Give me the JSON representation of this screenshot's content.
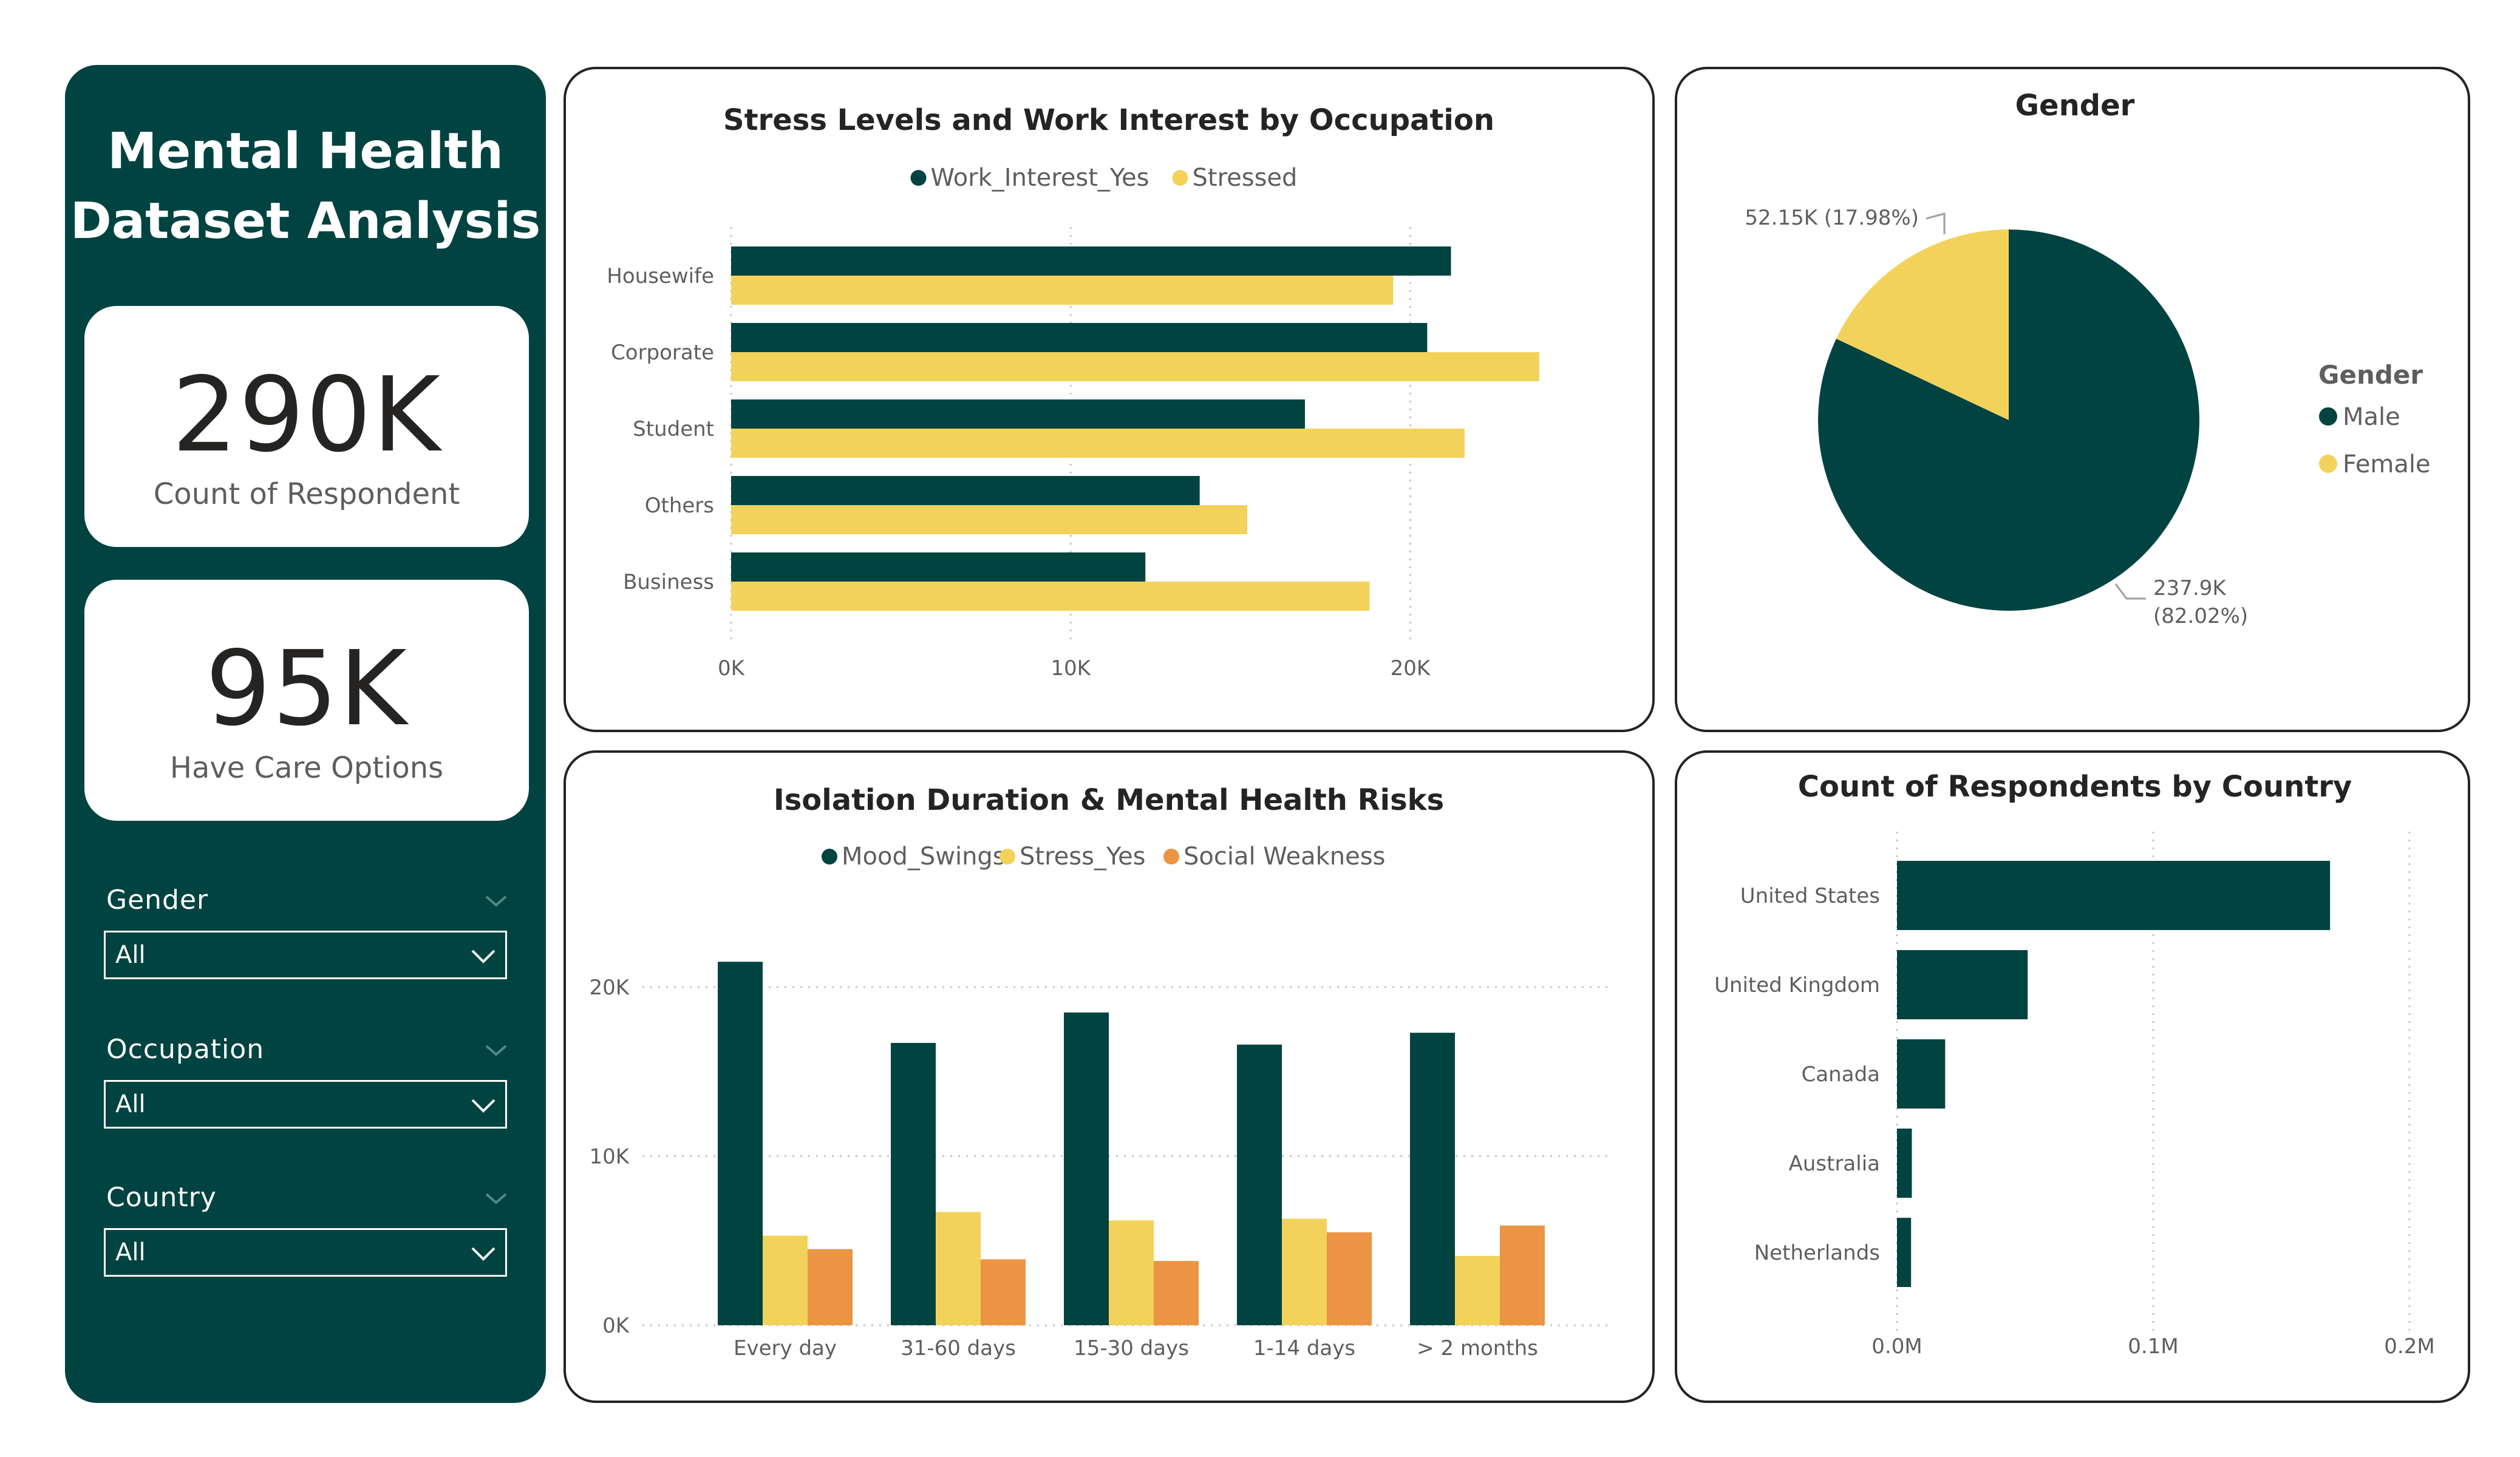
{
  "sidebar": {
    "title_line1": "Mental Health",
    "title_line2": "Dataset Analysis",
    "kpis": [
      {
        "value": "290K",
        "label": "Count of Respondent"
      },
      {
        "value": "95K",
        "label": "Have Care Options"
      }
    ],
    "slicers": [
      {
        "label": "Gender",
        "value": "All"
      },
      {
        "label": "Occupation",
        "value": "All"
      },
      {
        "label": "Country",
        "value": "All"
      }
    ]
  },
  "colors": {
    "dark_green": "#014341",
    "yellow": "#f2d25b",
    "orange": "#eb9443",
    "panel_border": "#252423"
  },
  "chart_data": [
    {
      "id": "occupation",
      "type": "bar",
      "orientation": "horizontal",
      "title": "Stress Levels and Work Interest by Occupation",
      "categories": [
        "Housewife",
        "Corporate",
        "Student",
        "Others",
        "Business"
      ],
      "series": [
        {
          "name": "Work_Interest_Yes",
          "color": "#014341",
          "values": [
            21200,
            20500,
            16900,
            13800,
            12200
          ]
        },
        {
          "name": "Stressed",
          "color": "#f2d25b",
          "values": [
            19500,
            23800,
            21600,
            15200,
            18800
          ]
        }
      ],
      "xlim": [
        0,
        25000
      ],
      "xticks": [
        0,
        10000,
        20000
      ],
      "xtick_labels": [
        "0K",
        "10K",
        "20K"
      ],
      "legend": "top-center"
    },
    {
      "id": "gender",
      "type": "pie",
      "title": "Gender",
      "legend_title": "Gender",
      "slices": [
        {
          "name": "Male",
          "value": 237900,
          "label": "237.9K",
          "percent_label": "(82.02%)",
          "color": "#014341"
        },
        {
          "name": "Female",
          "value": 52150,
          "label": "52.15K (17.98%)",
          "color": "#f2d25b"
        }
      ],
      "legend": "right"
    },
    {
      "id": "isolation",
      "type": "bar",
      "orientation": "vertical",
      "title": "Isolation Duration & Mental Health Risks",
      "categories": [
        "Every day",
        "31-60 days",
        "15-30 days",
        "1-14 days",
        "> 2 months"
      ],
      "series": [
        {
          "name": "Mood_Swings",
          "color": "#014341",
          "values": [
            21500,
            16700,
            18500,
            16600,
            17300
          ]
        },
        {
          "name": "Stress_Yes",
          "color": "#f2d25b",
          "values": [
            5300,
            6700,
            6200,
            6300,
            4100
          ]
        },
        {
          "name": "Social Weakness",
          "color": "#eb9443",
          "values": [
            4500,
            3900,
            3800,
            5500,
            5900
          ]
        }
      ],
      "ylim": [
        0,
        22000
      ],
      "yticks": [
        0,
        10000,
        20000
      ],
      "ytick_labels": [
        "0K",
        "10K",
        "20K"
      ],
      "grid": true,
      "legend": "top-center"
    },
    {
      "id": "country",
      "type": "bar",
      "orientation": "horizontal",
      "title": "Count of Respondents by Country",
      "categories": [
        "United States",
        "United Kingdom",
        "Canada",
        "Australia",
        "Netherlands"
      ],
      "series": [
        {
          "name": "Count",
          "color": "#014341",
          "values": [
            169000,
            51000,
            18800,
            5800,
            5500
          ]
        }
      ],
      "xlim": [
        0,
        200000
      ],
      "xticks": [
        0,
        100000,
        200000
      ],
      "xtick_labels": [
        "0.0M",
        "0.1M",
        "0.2M"
      ],
      "grid": true
    }
  ]
}
